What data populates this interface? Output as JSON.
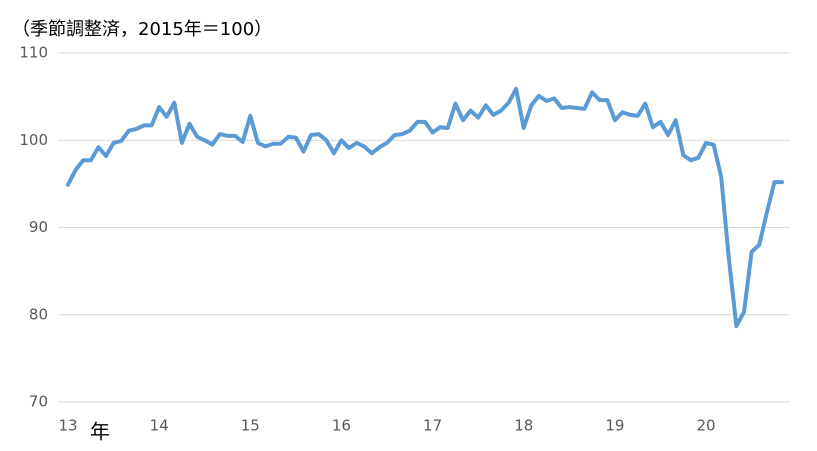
{
  "chart_data": {
    "type": "line",
    "title": "（季節調整済，2015年＝100）",
    "x_label": "年",
    "categories": [
      "13",
      null,
      null,
      null,
      null,
      null,
      null,
      null,
      null,
      null,
      null,
      null,
      "14",
      null,
      null,
      null,
      null,
      null,
      null,
      null,
      null,
      null,
      null,
      null,
      "15",
      null,
      null,
      null,
      null,
      null,
      null,
      null,
      null,
      null,
      null,
      null,
      "16",
      null,
      null,
      null,
      null,
      null,
      null,
      null,
      null,
      null,
      null,
      null,
      "17",
      null,
      null,
      null,
      null,
      null,
      null,
      null,
      null,
      null,
      null,
      null,
      "18",
      null,
      null,
      null,
      null,
      null,
      null,
      null,
      null,
      null,
      null,
      null,
      "19",
      null,
      null,
      null,
      null,
      null,
      null,
      null,
      null,
      null,
      null,
      null,
      "20",
      null,
      null,
      null,
      null,
      null,
      null,
      null,
      null,
      null,
      null
    ],
    "series": [
      {
        "color": "#5b9bd5",
        "values": [
          94.9,
          96.6,
          97.7,
          97.7,
          99.2,
          98.2,
          99.7,
          99.9,
          101.1,
          101.3,
          101.7,
          101.7,
          103.8,
          102.7,
          104.3,
          99.7,
          101.9,
          100.4,
          100.0,
          99.5,
          100.7,
          100.5,
          100.5,
          99.8,
          102.8,
          99.7,
          99.3,
          99.6,
          99.6,
          100.4,
          100.3,
          98.7,
          100.6,
          100.7,
          100.0,
          98.5,
          100.0,
          99.1,
          99.7,
          99.3,
          98.5,
          99.2,
          99.7,
          100.6,
          100.7,
          101.1,
          102.1,
          102.1,
          100.9,
          101.5,
          101.4,
          104.2,
          102.3,
          103.4,
          102.6,
          104.0,
          102.9,
          103.4,
          104.3,
          105.9,
          101.4,
          104.0,
          105.1,
          104.5,
          104.8,
          103.7,
          103.8,
          103.7,
          103.6,
          105.5,
          104.6,
          104.6,
          102.3,
          103.2,
          102.9,
          102.8,
          104.2,
          101.5,
          102.1,
          100.6,
          102.3,
          98.3,
          97.7,
          98.0,
          99.7,
          99.5,
          95.8,
          86.5,
          78.7,
          80.3,
          87.2,
          88.0,
          91.7,
          95.2,
          95.2
        ]
      }
    ],
    "ylim": [
      70,
      110
    ],
    "yticks": [
      70,
      80,
      90,
      100,
      110
    ],
    "grid": true
  }
}
